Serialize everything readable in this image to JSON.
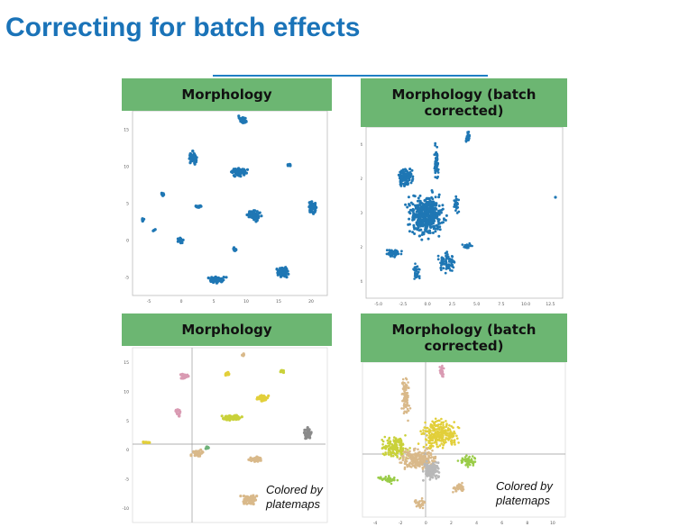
{
  "slide": {
    "title": "Correcting for batch effects"
  },
  "panels": [
    {
      "header": "Morphology",
      "yticks": [
        "15",
        "10",
        "5",
        "0",
        "-5"
      ],
      "xticks": [
        "-5",
        "0",
        "5",
        "10",
        "15",
        "20"
      ]
    },
    {
      "header": "Morphology (batch corrected)",
      "yticks": [
        "4",
        "2",
        "0",
        "-2",
        "-4"
      ],
      "xticks": [
        "-5.0",
        "-2.5",
        "0.0",
        "2.5",
        "5.0",
        "7.5",
        "10.0",
        "12.5"
      ]
    },
    {
      "header": "Morphology",
      "yticks": [
        "15",
        "10",
        "5",
        "0",
        "-5",
        "-10"
      ],
      "xticks": [
        "-5",
        "0",
        "5",
        "10",
        "15",
        "20"
      ],
      "annotation": "Colored by\nplatemaps"
    },
    {
      "header": "Morphology (batch corrected)",
      "yticks": [
        "6",
        "4",
        "2",
        "0",
        "-2",
        "-4"
      ],
      "xticks": [
        "-4",
        "-2",
        "0",
        "2",
        "4",
        "6",
        "8",
        "10"
      ],
      "annotation": "Colored by\nplatemaps"
    }
  ],
  "colors": {
    "title": "#1a73b8",
    "header_bg": "#6cb672",
    "scatter_blue": "#1f77b4",
    "platemap_palette": [
      "#d9b98a",
      "#c9d13a",
      "#e2cf3a",
      "#9acc48",
      "#b8b8b8",
      "#d99ab2",
      "#6fb27a",
      "#c48ac4",
      "#8a8a8a"
    ]
  }
}
